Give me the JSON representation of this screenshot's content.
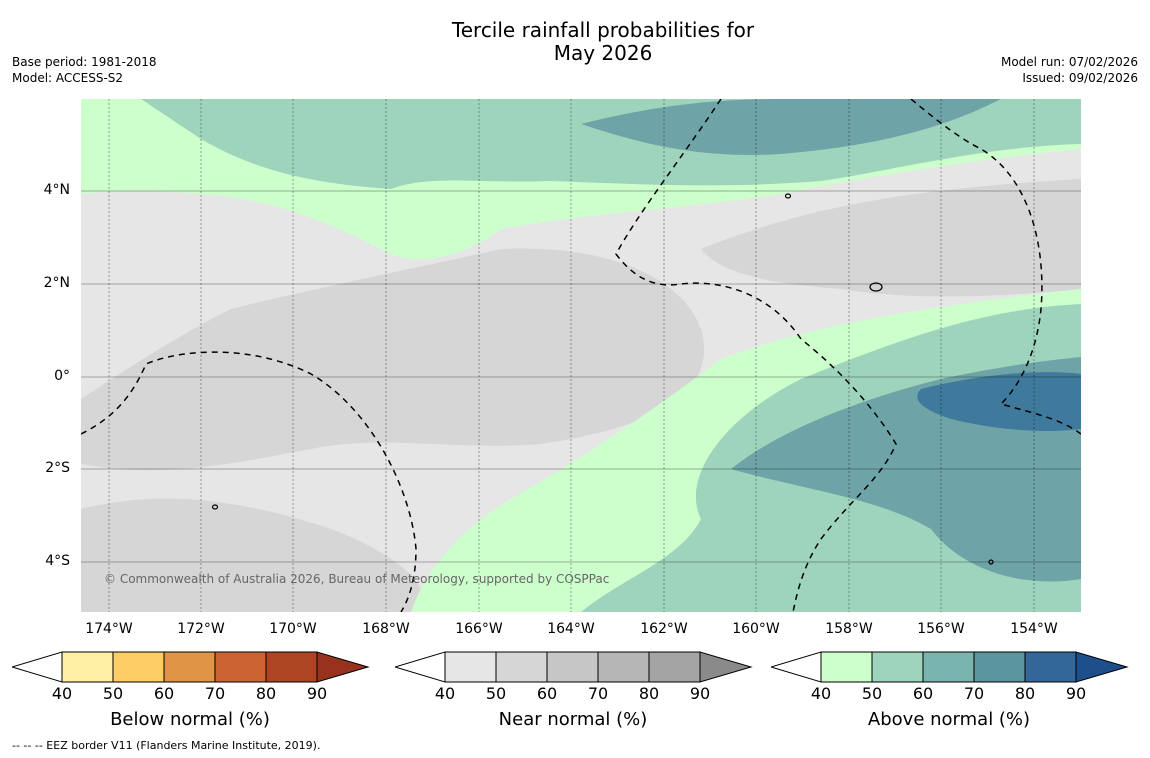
{
  "title_line1": "Tercile rainfall probabilities for",
  "title_line2": "May 2026",
  "base_period": "Base period: 1981-2018",
  "model": "Model: ACCESS-S2",
  "model_run": "Model run: 07/02/2026",
  "issued": "Issued: 09/02/2026",
  "copyright": "© Commonwealth of Australia 2026, Bureau of Meteorology, supported by COSPPac",
  "footer": "--  --  -- EEZ border V11 (Flanders Marine Institute, 2019).",
  "lat_labels": [
    "4°N",
    "2°N",
    "0°",
    "2°S",
    "4°S"
  ],
  "lon_labels": [
    "174°W",
    "172°W",
    "170°W",
    "168°W",
    "166°W",
    "164°W",
    "162°W",
    "160°W",
    "158°W",
    "156°W",
    "154°W"
  ],
  "colorbars": [
    {
      "title": "Below normal (%)",
      "ticks": [
        "40",
        "50",
        "60",
        "70",
        "80",
        "90"
      ],
      "colors": [
        "#fff0a5",
        "#ffcd66",
        "#e09446",
        "#cb6333",
        "#ad4422"
      ],
      "extend_color": "#96321e"
    },
    {
      "title": "Near normal (%)",
      "ticks": [
        "40",
        "50",
        "60",
        "70",
        "80",
        "90"
      ],
      "colors": [
        "#e6e6e6",
        "#d6d6d6",
        "#c6c6c6",
        "#b6b6b6",
        "#a4a4a4"
      ],
      "extend_color": "#8a8a8a"
    },
    {
      "title": "Above normal (%)",
      "ticks": [
        "40",
        "50",
        "60",
        "70",
        "80",
        "90"
      ],
      "colors": [
        "#ccffcc",
        "#9ed4bc",
        "#7ab4ae",
        "#5a95a0",
        "#336699"
      ],
      "extend_color": "#1f4f8a"
    }
  ],
  "map_colors": {
    "near_40": "#e6e6e6",
    "near_50": "#d6d6d6",
    "above_40": "#ccffcc",
    "above_50": "#9ed4bc",
    "above_60": "#6ea4a8",
    "above_70": "#3f7a9c"
  }
}
